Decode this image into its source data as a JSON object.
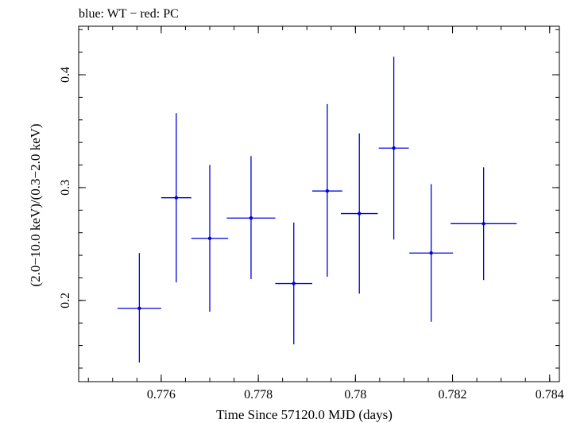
{
  "chart_data": {
    "type": "scatter",
    "title": "blue: WT − red: PC",
    "xlabel": "Time Since 57120.0 MJD (days)",
    "ylabel": "(2.0−10.0 keV)/(0.3−2.0 keV)",
    "xlim": [
      0.7743,
      0.7842
    ],
    "ylim": [
      0.128,
      0.443
    ],
    "xticks": [
      {
        "value": 0.776,
        "label": "0.776"
      },
      {
        "value": 0.778,
        "label": "0.778"
      },
      {
        "value": 0.78,
        "label": "0.78"
      },
      {
        "value": 0.782,
        "label": "0.782"
      },
      {
        "value": 0.784,
        "label": "0.784"
      }
    ],
    "yticks": [
      {
        "value": 0.2,
        "label": "0.2"
      },
      {
        "value": 0.3,
        "label": "0.3"
      },
      {
        "value": 0.4,
        "label": "0.4"
      }
    ],
    "grid": false,
    "series": [
      {
        "color": "#0000dd",
        "points": [
          {
            "x": 0.77555,
            "y": 0.193,
            "xerr": 0.00045,
            "ylo": 0.145,
            "yhi": 0.242
          },
          {
            "x": 0.77631,
            "y": 0.291,
            "xerr": 0.00031,
            "ylo": 0.216,
            "yhi": 0.366
          },
          {
            "x": 0.777,
            "y": 0.255,
            "xerr": 0.00038,
            "ylo": 0.19,
            "yhi": 0.32
          },
          {
            "x": 0.77785,
            "y": 0.273,
            "xerr": 0.0005,
            "ylo": 0.219,
            "yhi": 0.328
          },
          {
            "x": 0.77873,
            "y": 0.215,
            "xerr": 0.00038,
            "ylo": 0.161,
            "yhi": 0.269
          },
          {
            "x": 0.77942,
            "y": 0.297,
            "xerr": 0.00031,
            "ylo": 0.221,
            "yhi": 0.374
          },
          {
            "x": 0.78008,
            "y": 0.277,
            "xerr": 0.00038,
            "ylo": 0.206,
            "yhi": 0.348
          },
          {
            "x": 0.78079,
            "y": 0.335,
            "xerr": 0.00031,
            "ylo": 0.254,
            "yhi": 0.416
          },
          {
            "x": 0.78156,
            "y": 0.242,
            "xerr": 0.00045,
            "ylo": 0.181,
            "yhi": 0.303
          },
          {
            "x": 0.78264,
            "y": 0.268,
            "xerr": 0.00068,
            "ylo": 0.218,
            "yhi": 0.318
          }
        ]
      }
    ]
  }
}
